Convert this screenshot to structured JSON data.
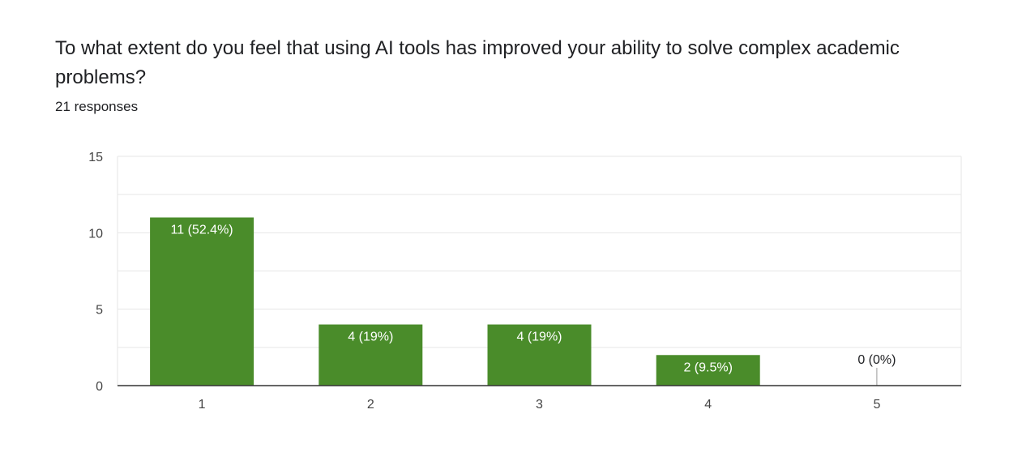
{
  "question": {
    "title": "To what extent do you feel that using AI tools has improved your ability to solve complex academic problems?",
    "responses": "21 responses"
  },
  "colors": {
    "bar": "#4a8c2a",
    "bar_label_inside": "#ffffff",
    "bar_label_outside": "#202124",
    "grid": "#e6e6e6",
    "axis": "#333333",
    "tick_label": "#444444"
  },
  "chart_data": {
    "type": "bar",
    "categories": [
      "1",
      "2",
      "3",
      "4",
      "5"
    ],
    "values": [
      11,
      4,
      4,
      2,
      0
    ],
    "data_labels": [
      "11 (52.4%)",
      "4 (19%)",
      "4 (19%)",
      "2 (9.5%)",
      "0 (0%)"
    ],
    "title": "",
    "xlabel": "",
    "ylabel": "",
    "ylim": [
      0,
      15
    ],
    "y_ticks": [
      0,
      5,
      10,
      15
    ],
    "grid": true,
    "legend": "none"
  }
}
